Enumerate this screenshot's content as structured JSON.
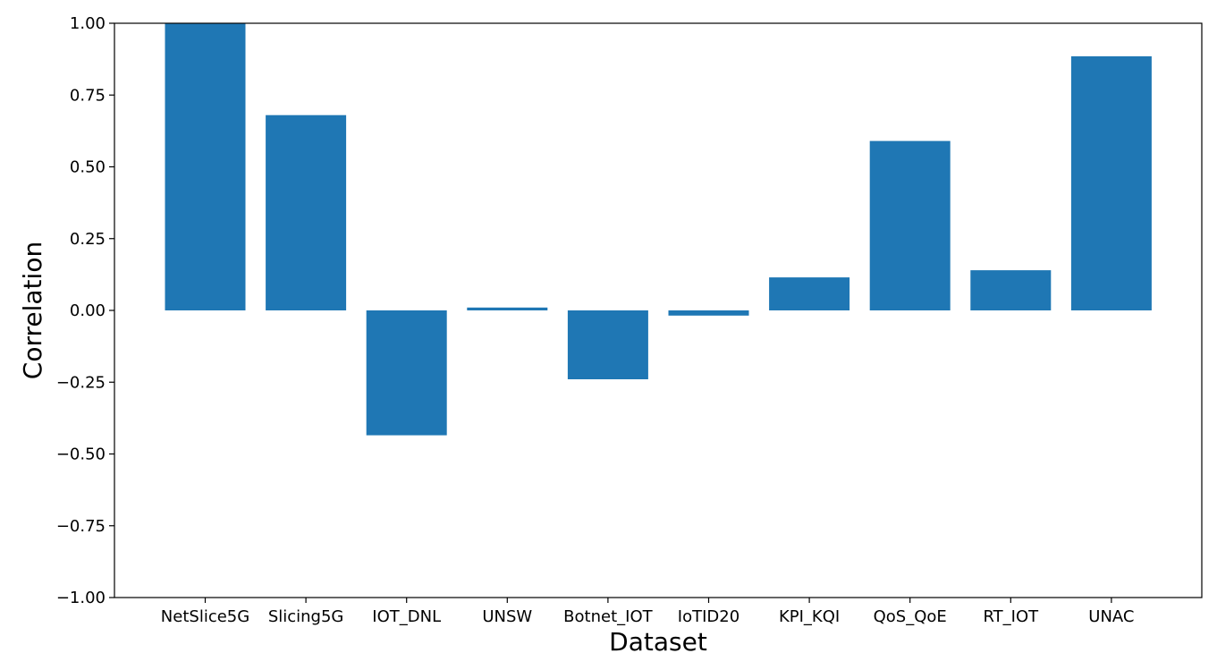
{
  "chart_data": {
    "type": "bar",
    "title": "",
    "xlabel": "Dataset",
    "ylabel": "Correlation",
    "categories": [
      "NetSlice5G",
      "Slicing5G",
      "IOT_DNL",
      "UNSW",
      "Botnet_IOT",
      "IoTID20",
      "KPI_KQI",
      "QoS_QoE",
      "RT_IOT",
      "UNAC"
    ],
    "values": [
      1.0,
      0.68,
      -0.435,
      0.01,
      -0.24,
      -0.018,
      0.115,
      0.59,
      0.14,
      0.885
    ],
    "ylim": [
      -1.0,
      1.0
    ],
    "yticks": [
      -1.0,
      -0.75,
      -0.5,
      -0.25,
      0.0,
      0.25,
      0.5,
      0.75,
      1.0
    ],
    "ytick_labels": [
      "−1.00",
      "−0.75",
      "−0.50",
      "−0.25",
      "0.00",
      "0.25",
      "0.50",
      "0.75",
      "1.00"
    ],
    "bar_color": "#1f77b4",
    "grid": false,
    "legend": "none"
  }
}
